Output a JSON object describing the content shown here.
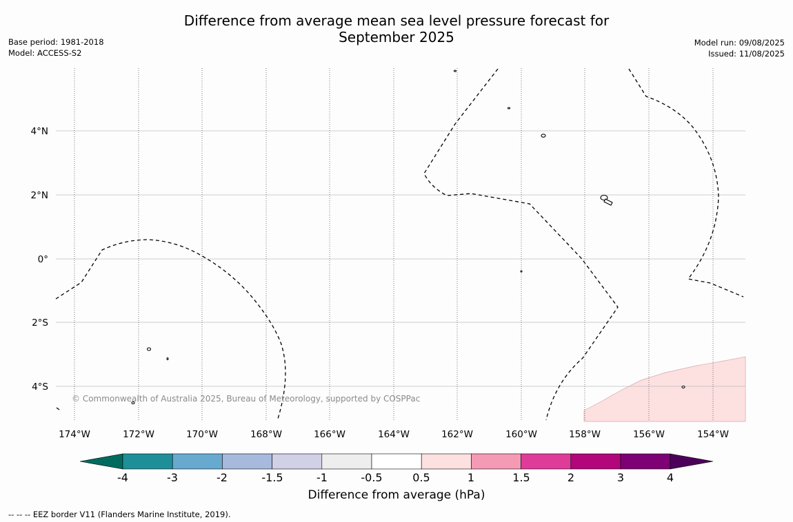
{
  "title_line1": "Difference from average mean sea level pressure forecast for",
  "title_line2": "September 2025",
  "base_period": "Base period: 1981-2018",
  "model": "Model: ACCESS-S2",
  "model_run": "Model run: 09/08/2025",
  "issued": "Issued: 11/08/2025",
  "lon_labels": [
    "174°W",
    "172°W",
    "170°W",
    "168°W",
    "166°W",
    "164°W",
    "162°W",
    "160°W",
    "158°W",
    "156°W",
    "154°W"
  ],
  "lat_labels": [
    "4°N",
    "2°N",
    "0°",
    "2°S",
    "4°S"
  ],
  "copyright": "© Commonwealth of Australia 2025, Bureau of Meteorology, supported by COSPPac",
  "colorbar": {
    "title": "Difference from average (hPa)",
    "ticks": [
      "-4",
      "-3",
      "-2",
      "-1.5",
      "-1",
      "-0.5",
      "0.5",
      "1",
      "1.5",
      "2",
      "3",
      "4"
    ],
    "colors": [
      "#006b5e",
      "#1e8f99",
      "#68a9d0",
      "#a7b9dd",
      "#d0d1e7",
      "#eeeeee",
      "#ffffff",
      "#fde0e0",
      "#f49ab4",
      "#df3c9a",
      "#b2067a",
      "#7d0075",
      "#4d0059"
    ]
  },
  "footnote": "-- -- -- EEZ border V11 (Flanders Marine Institute, 2019)."
}
